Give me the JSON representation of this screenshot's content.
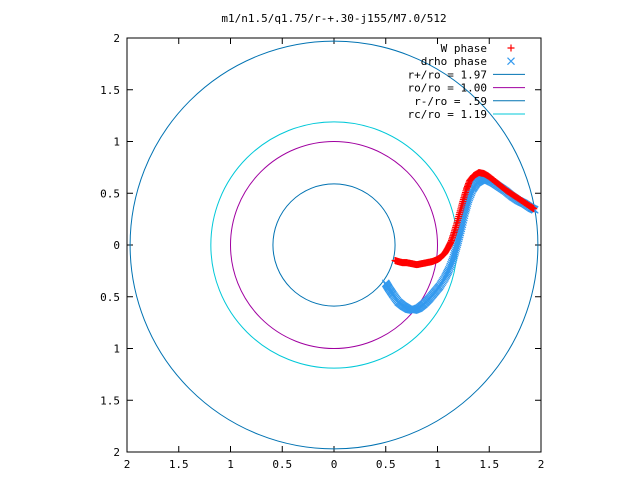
{
  "chart_data": {
    "type": "scatter",
    "title": "m1/n1.5/q1.75/r-+.30-j155/M7.0/512",
    "xlim": [
      -2,
      2
    ],
    "ylim": [
      -2,
      2
    ],
    "x_ticks": [
      {
        "v": -2,
        "label": "2"
      },
      {
        "v": -1.5,
        "label": "1.5"
      },
      {
        "v": -1,
        "label": "1"
      },
      {
        "v": -0.5,
        "label": "0.5"
      },
      {
        "v": 0,
        "label": "0"
      },
      {
        "v": 0.5,
        "label": "0.5"
      },
      {
        "v": 1,
        "label": "1"
      },
      {
        "v": 1.5,
        "label": "1.5"
      },
      {
        "v": 2,
        "label": "2"
      }
    ],
    "y_ticks": [
      {
        "v": 2,
        "label": "2"
      },
      {
        "v": 1.5,
        "label": "1.5"
      },
      {
        "v": 1,
        "label": "1"
      },
      {
        "v": 0.5,
        "label": "0.5"
      },
      {
        "v": 0,
        "label": "0"
      },
      {
        "v": -0.5,
        "label": "0.5"
      },
      {
        "v": -1,
        "label": "1"
      },
      {
        "v": -1.5,
        "label": "1.5"
      },
      {
        "v": -2,
        "label": "2"
      }
    ],
    "grid": false,
    "legend_position": "top-right",
    "circles": [
      {
        "name": "r+/ro = 1.97",
        "radius": 1.97,
        "color": "#0072b2"
      },
      {
        "name": "ro/ro = 1.00",
        "radius": 1.0,
        "color": "#a000a0"
      },
      {
        "name": "r-/ro = .59",
        "radius": 0.59,
        "color": "#0072b2"
      },
      {
        "name": "rc/ro = 1.19",
        "radius": 1.19,
        "color": "#00c8d8"
      }
    ],
    "series": [
      {
        "name": "W phase",
        "marker": "+",
        "color": "#ff0000",
        "points": [
          [
            0.59,
            -0.15
          ],
          [
            0.62,
            -0.16
          ],
          [
            0.66,
            -0.17
          ],
          [
            0.7,
            -0.17
          ],
          [
            0.75,
            -0.18
          ],
          [
            0.8,
            -0.19
          ],
          [
            0.85,
            -0.18
          ],
          [
            0.9,
            -0.17
          ],
          [
            0.95,
            -0.16
          ],
          [
            1.0,
            -0.14
          ],
          [
            1.03,
            -0.12
          ],
          [
            1.07,
            -0.08
          ],
          [
            1.1,
            -0.03
          ],
          [
            1.13,
            0.03
          ],
          [
            1.16,
            0.12
          ],
          [
            1.19,
            0.22
          ],
          [
            1.22,
            0.33
          ],
          [
            1.25,
            0.44
          ],
          [
            1.28,
            0.54
          ],
          [
            1.31,
            0.62
          ],
          [
            1.35,
            0.67
          ],
          [
            1.4,
            0.7
          ],
          [
            1.45,
            0.69
          ],
          [
            1.5,
            0.66
          ],
          [
            1.55,
            0.62
          ],
          [
            1.6,
            0.58
          ],
          [
            1.66,
            0.53
          ],
          [
            1.72,
            0.49
          ],
          [
            1.78,
            0.45
          ],
          [
            1.84,
            0.41
          ],
          [
            1.9,
            0.37
          ],
          [
            1.93,
            0.35
          ]
        ]
      },
      {
        "name": "drho phase",
        "marker": "x",
        "color": "#3399ee",
        "points": [
          [
            0.5,
            -0.37
          ],
          [
            0.53,
            -0.42
          ],
          [
            0.57,
            -0.48
          ],
          [
            0.62,
            -0.55
          ],
          [
            0.67,
            -0.59
          ],
          [
            0.72,
            -0.62
          ],
          [
            0.77,
            -0.63
          ],
          [
            0.82,
            -0.61
          ],
          [
            0.87,
            -0.57
          ],
          [
            0.92,
            -0.52
          ],
          [
            0.97,
            -0.46
          ],
          [
            1.02,
            -0.4
          ],
          [
            1.07,
            -0.32
          ],
          [
            1.11,
            -0.24
          ],
          [
            1.15,
            -0.14
          ],
          [
            1.18,
            -0.03
          ],
          [
            1.21,
            0.08
          ],
          [
            1.24,
            0.2
          ],
          [
            1.27,
            0.33
          ],
          [
            1.3,
            0.44
          ],
          [
            1.34,
            0.54
          ],
          [
            1.38,
            0.6
          ],
          [
            1.43,
            0.63
          ],
          [
            1.48,
            0.63
          ],
          [
            1.54,
            0.6
          ],
          [
            1.6,
            0.56
          ],
          [
            1.66,
            0.52
          ],
          [
            1.72,
            0.47
          ],
          [
            1.78,
            0.43
          ],
          [
            1.84,
            0.4
          ],
          [
            1.9,
            0.36
          ],
          [
            1.94,
            0.34
          ]
        ]
      }
    ]
  }
}
